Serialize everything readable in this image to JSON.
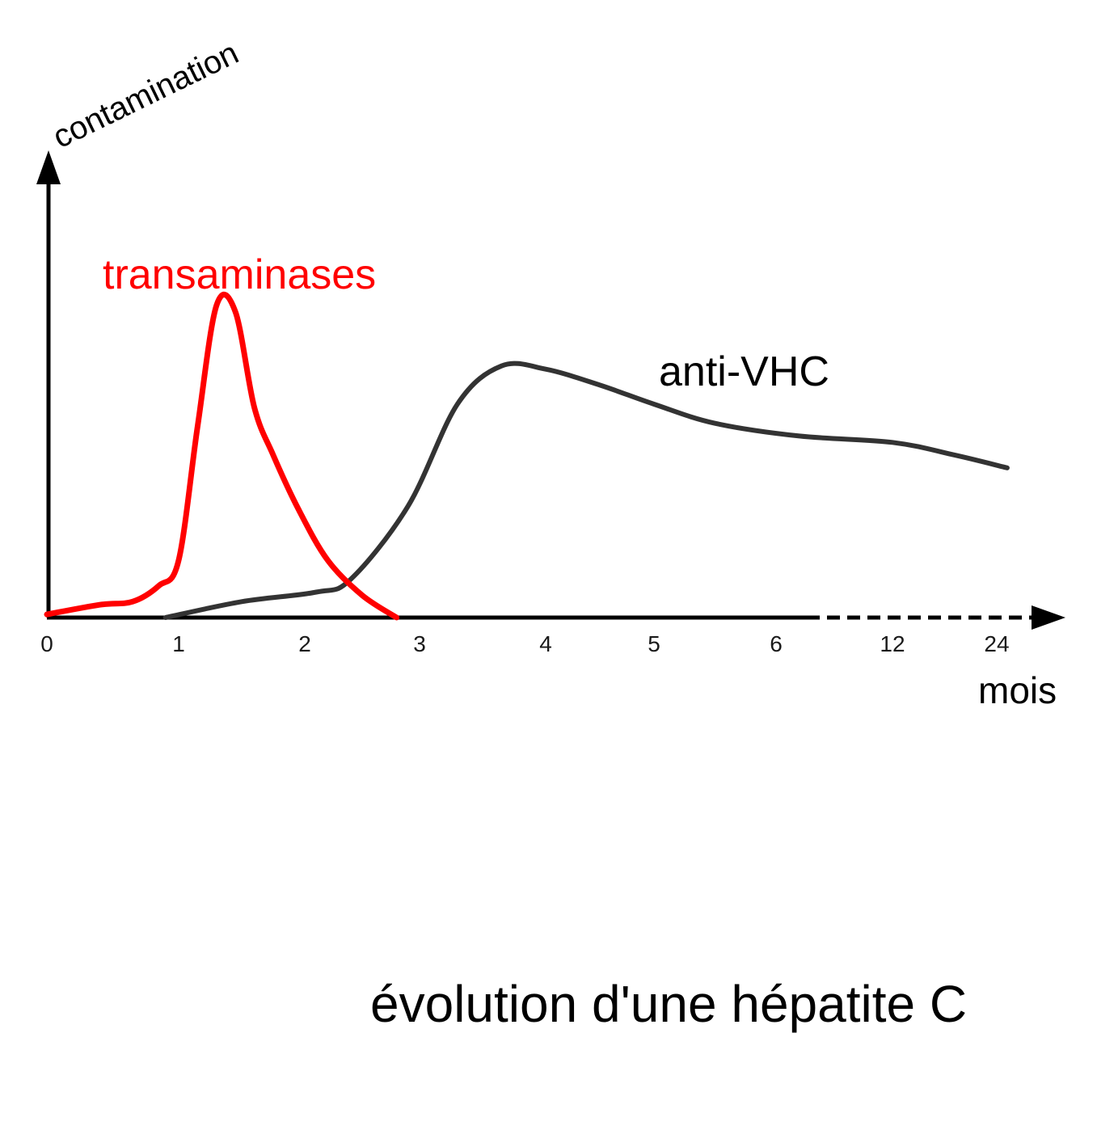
{
  "chart_data": {
    "type": "line",
    "title": "",
    "caption": "évolution d'une hépatite C",
    "ylabel": "contamination",
    "xlabel": "mois",
    "x_ticks": [
      "0",
      "1",
      "2",
      "3",
      "4",
      "5",
      "6",
      "12",
      "24"
    ],
    "x_axis_note": "axis dashed after 6 mois (non-linear scale)",
    "y_scale": "relative level, no ticks",
    "ylim": [
      0,
      1
    ],
    "grid": false,
    "series": [
      {
        "name": "transaminases",
        "color": "#ff0000",
        "x": [
          0,
          0.4,
          0.65,
          0.85,
          1.0,
          1.15,
          1.3,
          1.45,
          1.6,
          1.75,
          1.95,
          2.2,
          2.5,
          2.8
        ],
        "y": [
          0.01,
          0.04,
          0.05,
          0.1,
          0.18,
          0.6,
          0.98,
          0.96,
          0.66,
          0.51,
          0.34,
          0.18,
          0.07,
          0.0
        ]
      },
      {
        "name": "anti-VHC",
        "color": "#333333",
        "x": [
          0.9,
          1.5,
          2.1,
          2.4,
          2.9,
          3.3,
          3.65,
          4.0,
          4.5,
          5.0,
          5.5,
          6.2,
          7.0,
          7.6,
          8.1
        ],
        "y": [
          0.0,
          0.05,
          0.08,
          0.12,
          0.35,
          0.67,
          0.79,
          0.78,
          0.73,
          0.67,
          0.61,
          0.57,
          0.55,
          0.51,
          0.47
        ]
      }
    ]
  }
}
